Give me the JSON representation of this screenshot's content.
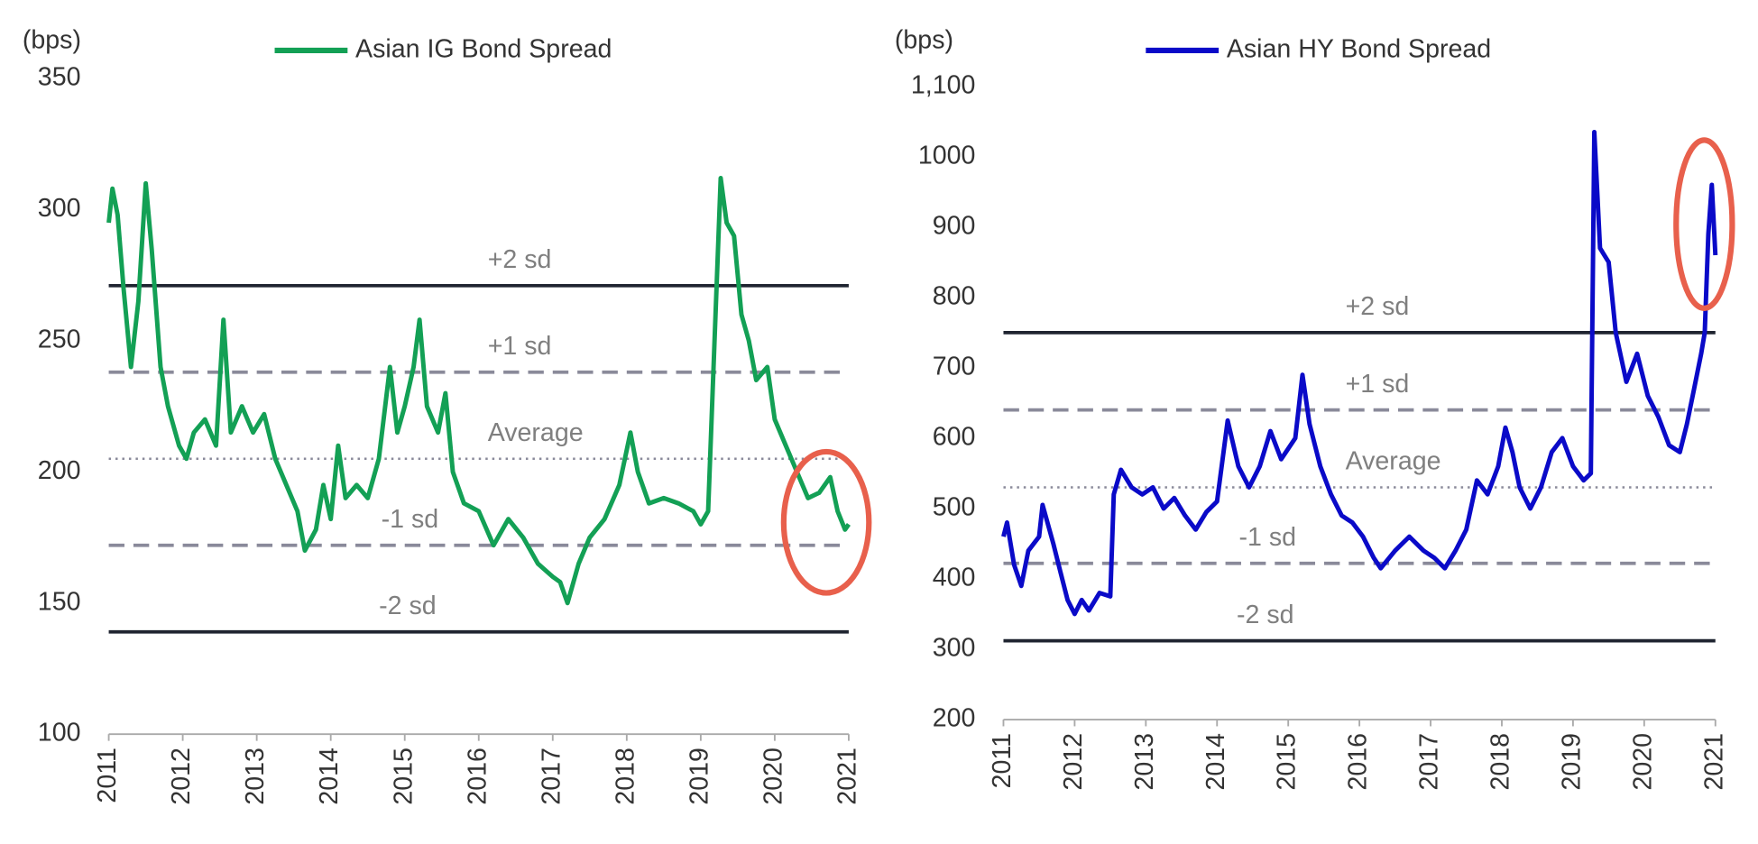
{
  "chart_data": [
    {
      "type": "line",
      "y_label": "(bps)",
      "series": [
        {
          "name": "Asian IG Bond Spread",
          "color": "#13a055",
          "x": [
            2011.0,
            2011.05,
            2011.12,
            2011.2,
            2011.3,
            2011.4,
            2011.5,
            2011.58,
            2011.7,
            2011.8,
            2011.95,
            2012.05,
            2012.15,
            2012.3,
            2012.45,
            2012.55,
            2012.65,
            2012.8,
            2012.95,
            2013.1,
            2013.25,
            2013.4,
            2013.55,
            2013.65,
            2013.8,
            2013.9,
            2014.0,
            2014.1,
            2014.2,
            2014.35,
            2014.5,
            2014.65,
            2014.8,
            2014.9,
            2015.0,
            2015.12,
            2015.2,
            2015.3,
            2015.45,
            2015.55,
            2015.65,
            2015.8,
            2016.0,
            2016.2,
            2016.4,
            2016.6,
            2016.8,
            2017.0,
            2017.1,
            2017.2,
            2017.35,
            2017.5,
            2017.7,
            2017.9,
            2018.05,
            2018.15,
            2018.3,
            2018.5,
            2018.7,
            2018.9,
            2019.0,
            2019.1,
            2019.2,
            2019.27,
            2019.35,
            2019.45,
            2019.55,
            2019.65,
            2019.75,
            2019.9,
            2020.0,
            2020.15,
            2020.3,
            2020.45,
            2020.6,
            2020.75,
            2020.85,
            2020.95,
            2021.0
          ],
          "values": [
            295,
            308,
            298,
            270,
            240,
            265,
            310,
            285,
            240,
            225,
            210,
            205,
            215,
            220,
            210,
            258,
            215,
            225,
            215,
            222,
            205,
            195,
            185,
            170,
            178,
            195,
            182,
            210,
            190,
            195,
            190,
            205,
            240,
            215,
            225,
            240,
            258,
            225,
            215,
            230,
            200,
            188,
            185,
            172,
            182,
            175,
            165,
            160,
            158,
            150,
            165,
            175,
            182,
            195,
            215,
            200,
            188,
            190,
            188,
            185,
            180,
            185,
            260,
            312,
            295,
            290,
            260,
            250,
            235,
            240,
            220,
            210,
            200,
            190,
            192,
            198,
            185,
            178,
            180
          ]
        }
      ],
      "reference_lines": [
        {
          "label": "+2 sd",
          "value": 271,
          "style": "solid"
        },
        {
          "label": "+1 sd",
          "value": 238,
          "style": "dashed"
        },
        {
          "label": "Average",
          "value": 205,
          "style": "dotted"
        },
        {
          "label": "-1 sd",
          "value": 172,
          "style": "dashed"
        },
        {
          "label": "-2 sd",
          "value": 139,
          "style": "solid"
        }
      ],
      "xlim": [
        2011,
        2021
      ],
      "xticks": [
        2011,
        2012,
        2013,
        2014,
        2015,
        2016,
        2017,
        2018,
        2019,
        2020,
        2021
      ],
      "ylim": [
        100,
        350
      ],
      "yticks": [
        100,
        150,
        200,
        250,
        300,
        350
      ]
    },
    {
      "type": "line",
      "y_label": "(bps)",
      "series": [
        {
          "name": "Asian HY Bond Spread",
          "color": "#0a0ac8",
          "x": [
            2011.0,
            2011.05,
            2011.15,
            2011.25,
            2011.35,
            2011.5,
            2011.55,
            2011.7,
            2011.8,
            2011.9,
            2012.0,
            2012.1,
            2012.2,
            2012.35,
            2012.5,
            2012.55,
            2012.65,
            2012.8,
            2012.95,
            2013.1,
            2013.25,
            2013.4,
            2013.55,
            2013.7,
            2013.85,
            2014.0,
            2014.15,
            2014.3,
            2014.45,
            2014.6,
            2014.75,
            2014.9,
            2015.1,
            2015.2,
            2015.3,
            2015.45,
            2015.6,
            2015.75,
            2015.9,
            2016.05,
            2016.2,
            2016.3,
            2016.5,
            2016.7,
            2016.9,
            2017.05,
            2017.2,
            2017.35,
            2017.5,
            2017.65,
            2017.8,
            2017.95,
            2018.05,
            2018.15,
            2018.25,
            2018.4,
            2018.55,
            2018.7,
            2018.85,
            2019.0,
            2019.15,
            2019.25,
            2019.3,
            2019.38,
            2019.5,
            2019.6,
            2019.75,
            2019.9,
            2020.05,
            2020.2,
            2020.35,
            2020.5,
            2020.6,
            2020.7,
            2020.8,
            2020.85,
            2020.9,
            2020.95,
            2021.0
          ],
          "values": [
            460,
            480,
            420,
            390,
            440,
            460,
            505,
            450,
            410,
            370,
            350,
            370,
            355,
            380,
            375,
            520,
            555,
            530,
            520,
            530,
            500,
            515,
            490,
            470,
            495,
            510,
            625,
            560,
            530,
            560,
            610,
            570,
            600,
            690,
            620,
            560,
            520,
            490,
            480,
            460,
            430,
            415,
            440,
            460,
            440,
            430,
            415,
            440,
            470,
            540,
            520,
            560,
            615,
            580,
            530,
            500,
            530,
            580,
            600,
            560,
            540,
            550,
            1035,
            870,
            850,
            750,
            680,
            720,
            660,
            630,
            590,
            580,
            620,
            670,
            720,
            750,
            890,
            960,
            860
          ]
        }
      ],
      "reference_lines": [
        {
          "label": "+2 sd",
          "value": 750,
          "style": "solid"
        },
        {
          "label": "+1 sd",
          "value": 640,
          "style": "dashed"
        },
        {
          "label": "Average",
          "value": 530,
          "style": "dotted"
        },
        {
          "label": "-1 sd",
          "value": 422,
          "style": "dashed"
        },
        {
          "label": "-2 sd",
          "value": 312,
          "style": "solid"
        }
      ],
      "xlim": [
        2011,
        2021
      ],
      "xticks": [
        2011,
        2012,
        2013,
        2014,
        2015,
        2016,
        2017,
        2018,
        2019,
        2020,
        2021
      ],
      "ylim": [
        200,
        1100
      ],
      "yticks": [
        200,
        300,
        400,
        500,
        600,
        700,
        800,
        900,
        1000,
        {
          "value": 1100,
          "label": "1,100"
        }
      ]
    }
  ]
}
